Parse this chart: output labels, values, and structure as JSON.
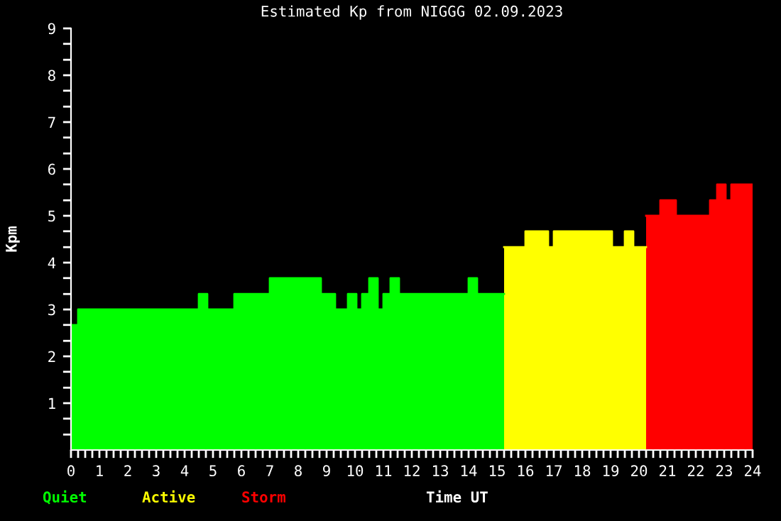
{
  "chart_data": {
    "type": "area",
    "title": "Estimated Kp from NIGGG 02.09.2023",
    "xlabel": "Time UT",
    "ylabel": "Kpm",
    "xlim": [
      0,
      24
    ],
    "ylim": [
      0,
      9
    ],
    "xticks": [
      0,
      {
        "value": 0.25,
        "label": null
      },
      {
        "value": 0.5,
        "label": null
      },
      {
        "value": 0.75,
        "label": null
      },
      1,
      {
        "value": 1.25,
        "label": null
      },
      {
        "value": 1.5,
        "label": null
      },
      {
        "value": 1.75,
        "label": null
      },
      2,
      {
        "value": 2.25,
        "label": null
      },
      {
        "value": 2.5,
        "label": null
      },
      {
        "value": 2.75,
        "label": null
      },
      3,
      {
        "value": 3.25,
        "label": null
      },
      {
        "value": 3.5,
        "label": null
      },
      {
        "value": 3.75,
        "label": null
      },
      4,
      {
        "value": 4.25,
        "label": null
      },
      {
        "value": 4.5,
        "label": null
      },
      {
        "value": 4.75,
        "label": null
      },
      5,
      {
        "value": 5.25,
        "label": null
      },
      {
        "value": 5.5,
        "label": null
      },
      {
        "value": 5.75,
        "label": null
      },
      6,
      {
        "value": 6.25,
        "label": null
      },
      {
        "value": 6.5,
        "label": null
      },
      {
        "value": 6.75,
        "label": null
      },
      7,
      {
        "value": 7.25,
        "label": null
      },
      {
        "value": 7.5,
        "label": null
      },
      {
        "value": 7.75,
        "label": null
      },
      8,
      {
        "value": 8.25,
        "label": null
      },
      {
        "value": 8.5,
        "label": null
      },
      {
        "value": 8.75,
        "label": null
      },
      9,
      {
        "value": 9.25,
        "label": null
      },
      {
        "value": 9.5,
        "label": null
      },
      {
        "value": 9.75,
        "label": null
      },
      10,
      {
        "value": 10.25,
        "label": null
      },
      {
        "value": 10.5,
        "label": null
      },
      {
        "value": 10.75,
        "label": null
      },
      11,
      {
        "value": 11.25,
        "label": null
      },
      {
        "value": 11.5,
        "label": null
      },
      {
        "value": 11.75,
        "label": null
      },
      12,
      {
        "value": 12.25,
        "label": null
      },
      {
        "value": 12.5,
        "label": null
      },
      {
        "value": 12.75,
        "label": null
      },
      13,
      {
        "value": 13.25,
        "label": null
      },
      {
        "value": 13.5,
        "label": null
      },
      {
        "value": 13.75,
        "label": null
      },
      14,
      {
        "value": 14.25,
        "label": null
      },
      {
        "value": 14.5,
        "label": null
      },
      {
        "value": 14.75,
        "label": null
      },
      15,
      {
        "value": 15.25,
        "label": null
      },
      {
        "value": 15.5,
        "label": null
      },
      {
        "value": 15.75,
        "label": null
      },
      16,
      {
        "value": 16.25,
        "label": null
      },
      {
        "value": 16.5,
        "label": null
      },
      {
        "value": 16.75,
        "label": null
      },
      17,
      {
        "value": 17.25,
        "label": null
      },
      {
        "value": 17.5,
        "label": null
      },
      {
        "value": 17.75,
        "label": null
      },
      18,
      {
        "value": 18.25,
        "label": null
      },
      {
        "value": 18.5,
        "label": null
      },
      {
        "value": 18.75,
        "label": null
      },
      19,
      {
        "value": 19.25,
        "label": null
      },
      {
        "value": 19.5,
        "label": null
      },
      {
        "value": 19.75,
        "label": null
      },
      20,
      {
        "value": 20.25,
        "label": null
      },
      {
        "value": 20.5,
        "label": null
      },
      {
        "value": 20.75,
        "label": null
      },
      21,
      {
        "value": 21.25,
        "label": null
      },
      {
        "value": 21.5,
        "label": null
      },
      {
        "value": 21.75,
        "label": null
      },
      22,
      {
        "value": 22.25,
        "label": null
      },
      {
        "value": 22.5,
        "label": null
      },
      {
        "value": 22.75,
        "label": null
      },
      23,
      {
        "value": 23.25,
        "label": null
      },
      {
        "value": 23.5,
        "label": null
      },
      {
        "value": 23.75,
        "label": null
      },
      24
    ],
    "yticks": [
      {
        "value": 0.33,
        "label": null
      },
      {
        "value": 0.67,
        "label": null
      },
      1,
      {
        "value": 1.33,
        "label": null
      },
      {
        "value": 1.67,
        "label": null
      },
      2,
      {
        "value": 2.33,
        "label": null
      },
      {
        "value": 2.67,
        "label": null
      },
      3,
      {
        "value": 3.33,
        "label": null
      },
      {
        "value": 3.67,
        "label": null
      },
      4,
      {
        "value": 4.33,
        "label": null
      },
      {
        "value": 4.67,
        "label": null
      },
      5,
      {
        "value": 5.33,
        "label": null
      },
      {
        "value": 5.67,
        "label": null
      },
      6,
      {
        "value": 6.33,
        "label": null
      },
      {
        "value": 6.67,
        "label": null
      },
      7,
      {
        "value": 7.33,
        "label": null
      },
      {
        "value": 7.67,
        "label": null
      },
      8,
      {
        "value": 8.33,
        "label": null
      },
      {
        "value": 8.67,
        "label": null
      },
      9
    ],
    "series": [
      {
        "name": "Quiet",
        "color": "#00ff00",
        "x": [
          0,
          0.25,
          0.25,
          4.5,
          4.5,
          4.8,
          4.8,
          5.75,
          5.75,
          7.0,
          7.0,
          8.8,
          8.8,
          9.3,
          9.3,
          9.75,
          9.75,
          10.05,
          10.05,
          10.25,
          10.25,
          10.5,
          10.5,
          10.8,
          10.8,
          11.0,
          11.0,
          11.25,
          11.25,
          11.55,
          11.55,
          14.0,
          14.0,
          14.3,
          14.3,
          15.25
        ],
        "values": [
          2.67,
          2.67,
          3.0,
          3.0,
          3.33,
          3.33,
          3.0,
          3.0,
          3.33,
          3.33,
          3.67,
          3.67,
          3.33,
          3.33,
          3.0,
          3.0,
          3.33,
          3.33,
          3.0,
          3.0,
          3.33,
          3.33,
          3.67,
          3.67,
          3.0,
          3.0,
          3.33,
          3.33,
          3.67,
          3.67,
          3.33,
          3.33,
          3.67,
          3.67,
          3.33,
          3.33
        ]
      },
      {
        "name": "Active",
        "color": "#ffff00",
        "x": [
          15.25,
          16.0,
          16.0,
          16.8,
          16.8,
          17.0,
          17.0,
          19.05,
          19.05,
          19.5,
          19.5,
          19.8,
          19.8,
          20.25
        ],
        "values": [
          4.33,
          4.33,
          4.67,
          4.67,
          4.33,
          4.33,
          4.67,
          4.67,
          4.33,
          4.33,
          4.67,
          4.67,
          4.33,
          4.33
        ]
      },
      {
        "name": "Storm",
        "color": "#ff0000",
        "x": [
          20.25,
          20.75,
          20.75,
          21.3,
          21.3,
          22.5,
          22.5,
          22.75,
          22.75,
          23.05,
          23.05,
          23.25,
          23.25,
          24.0
        ],
        "values": [
          5.0,
          5.0,
          5.33,
          5.33,
          5.0,
          5.0,
          5.33,
          5.33,
          5.67,
          5.67,
          5.33,
          5.33,
          5.67,
          5.67
        ]
      }
    ]
  }
}
